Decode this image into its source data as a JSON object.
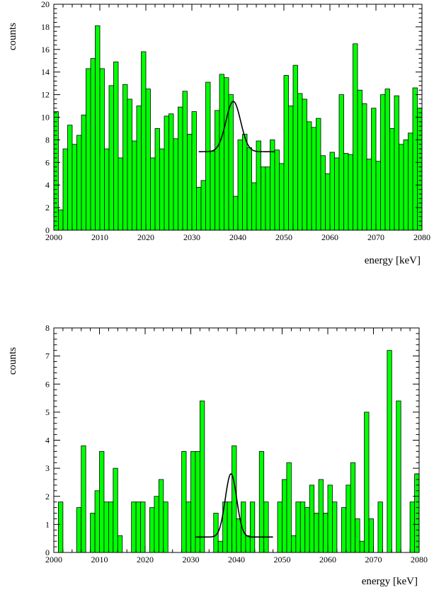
{
  "chart_data": [
    {
      "type": "bar",
      "xlabel": "energy [keV]",
      "ylabel": "counts",
      "xlim": [
        2000,
        2080
      ],
      "ylim": [
        0,
        20
      ],
      "bin_width": 1,
      "x_ticks": [
        2000,
        2010,
        2020,
        2030,
        2040,
        2050,
        2060,
        2070,
        2080
      ],
      "y_ticks": [
        0,
        2,
        4,
        6,
        8,
        10,
        12,
        14,
        16,
        18,
        20
      ],
      "bin_start": 2000,
      "values": [
        10.5,
        1.8,
        7.2,
        9.3,
        7.6,
        8.4,
        10.2,
        14.3,
        15.2,
        18.1,
        14.3,
        7.2,
        12.8,
        14.9,
        6.4,
        12.9,
        11.6,
        7.9,
        11.0,
        15.8,
        12.5,
        6.4,
        9.0,
        7.2,
        10.1,
        10.3,
        8.1,
        10.9,
        12.3,
        8.5,
        10.5,
        3.8,
        4.4,
        13.1,
        7.0,
        10.6,
        13.8,
        13.5,
        12.0,
        3.0,
        8.0,
        8.5,
        7.3,
        4.2,
        7.9,
        5.6,
        5.6,
        8.0,
        7.1,
        5.9,
        13.7,
        11.0,
        14.6,
        12.1,
        11.6,
        9.6,
        9.1,
        9.9,
        6.6,
        5.0,
        6.9,
        6.4,
        12.0,
        6.8,
        6.7,
        16.5,
        12.4,
        11.2,
        6.3,
        10.8,
        6.1,
        12.0,
        12.5,
        9.0,
        11.9,
        7.6,
        8.0,
        8.6,
        12.6,
        10.8
      ],
      "fit": {
        "baseline": 6.95,
        "amplitude": 4.45,
        "mean": 2039.0,
        "sigma": 1.6,
        "x_range": [
          2031.5,
          2048
        ]
      }
    },
    {
      "type": "bar",
      "xlabel": "energy [keV]",
      "ylabel": "counts",
      "xlim": [
        2000,
        2080
      ],
      "ylim": [
        0,
        8
      ],
      "bin_width": 1,
      "x_ticks": [
        2000,
        2010,
        2020,
        2030,
        2040,
        2050,
        2060,
        2070,
        2080
      ],
      "y_ticks": [
        0,
        1,
        2,
        3,
        4,
        5,
        6,
        7,
        8
      ],
      "bin_start": 2000,
      "values": [
        0,
        1.8,
        0,
        0,
        0,
        1.6,
        3.8,
        0,
        1.4,
        2.2,
        3.6,
        1.8,
        1.8,
        3.0,
        0.6,
        0,
        0,
        1.8,
        1.8,
        1.8,
        0,
        1.6,
        2.0,
        2.6,
        1.8,
        0,
        0,
        0,
        3.6,
        1.8,
        3.6,
        3.6,
        5.4,
        0,
        0,
        1.4,
        0.4,
        1.8,
        1.8,
        3.8,
        1.2,
        1.8,
        0.6,
        1.8,
        0,
        3.6,
        1.8,
        0,
        0,
        1.8,
        2.6,
        3.2,
        0.6,
        1.8,
        1.8,
        1.6,
        2.4,
        1.4,
        2.6,
        1.4,
        2.4,
        1.8,
        0,
        1.6,
        2.4,
        3.2,
        1.2,
        0.4,
        5.0,
        1.2,
        0,
        1.8,
        0,
        7.2,
        0,
        5.4,
        0,
        0,
        1.8,
        2.8
      ],
      "fit": {
        "baseline": 0.55,
        "amplitude": 2.25,
        "mean": 2038.8,
        "sigma": 1.25,
        "x_range": [
          2031,
          2048
        ]
      }
    }
  ]
}
